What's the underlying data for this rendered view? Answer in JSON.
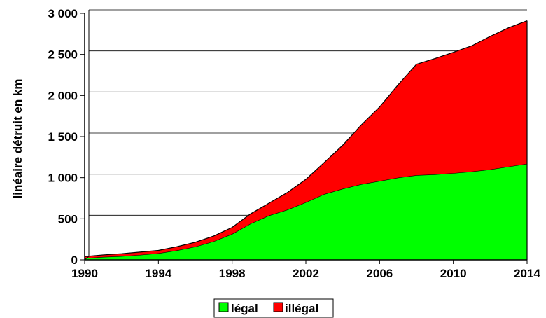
{
  "chart_data": {
    "type": "area",
    "stacked": true,
    "ylabel": "linéaire détruit en km",
    "xlabel": "",
    "x": [
      1990,
      1991,
      1992,
      1993,
      1994,
      1995,
      1996,
      1997,
      1998,
      1999,
      2000,
      2001,
      2002,
      2003,
      2004,
      2005,
      2006,
      2007,
      2008,
      2009,
      2010,
      2011,
      2012,
      2013,
      2014
    ],
    "xticks": [
      "1990",
      "1994",
      "1998",
      "2002",
      "2006",
      "2010",
      "2014"
    ],
    "yticks": [
      "0",
      "500",
      "1 000",
      "1 500",
      "2 000",
      "2 500",
      "3 000"
    ],
    "ylim": [
      0,
      3000
    ],
    "grid": true,
    "legend_position": "bottom-center",
    "series": [
      {
        "name": "légal",
        "color": "#00ff00",
        "values": [
          20,
          35,
          45,
          60,
          80,
          115,
          160,
          225,
          315,
          440,
          540,
          610,
          700,
          800,
          865,
          920,
          960,
          1000,
          1030,
          1040,
          1055,
          1075,
          1100,
          1135,
          1170
        ]
      },
      {
        "name": "illégal",
        "color": "#ff0000",
        "values": [
          20,
          25,
          30,
          35,
          35,
          45,
          55,
          65,
          80,
          120,
          150,
          210,
          280,
          385,
          530,
          720,
          900,
          1130,
          1350,
          1410,
          1470,
          1530,
          1620,
          1690,
          1740
        ]
      }
    ]
  }
}
